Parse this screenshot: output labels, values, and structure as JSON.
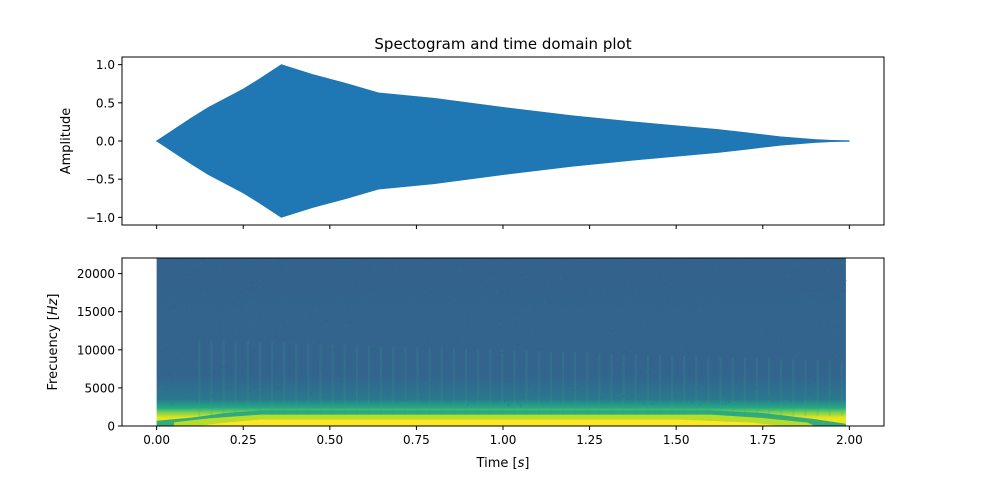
{
  "chart_data": [
    {
      "type": "area",
      "title": "Spectogram and time domain plot",
      "xlabel": "",
      "ylabel": "Amplitude",
      "xlim": [
        -0.1,
        2.1
      ],
      "ylim": [
        -1.1,
        1.1
      ],
      "xticks": [
        0.0,
        0.25,
        0.5,
        0.75,
        1.0,
        1.25,
        1.5,
        1.75,
        2.0
      ],
      "xticks_labels_visible": false,
      "yticks": [
        -1.0,
        -0.5,
        0.0,
        0.5,
        1.0
      ],
      "ytick_labels": [
        "−1.0",
        "−0.5",
        "0.0",
        "0.5",
        "1.0"
      ],
      "color": "#1f77b4",
      "grid": false,
      "series": [
        {
          "x": [
            0.0,
            0.05,
            0.1,
            0.15,
            0.2,
            0.25,
            0.3,
            0.36,
            0.45,
            0.55,
            0.64,
            0.8,
            1.0,
            1.2,
            1.4,
            1.62,
            1.7,
            1.8,
            1.9,
            1.95,
            2.0
          ],
          "upper": [
            0.0,
            0.15,
            0.3,
            0.44,
            0.56,
            0.68,
            0.82,
            1.0,
            0.87,
            0.75,
            0.63,
            0.56,
            0.44,
            0.33,
            0.24,
            0.15,
            0.11,
            0.055,
            0.02,
            0.008,
            0.0
          ],
          "lower": [
            0.0,
            -0.15,
            -0.3,
            -0.44,
            -0.56,
            -0.68,
            -0.82,
            -1.0,
            -0.87,
            -0.75,
            -0.63,
            -0.56,
            -0.44,
            -0.33,
            -0.24,
            -0.15,
            -0.11,
            -0.055,
            -0.02,
            -0.008,
            0.0
          ]
        }
      ]
    },
    {
      "type": "heatmap",
      "title": "",
      "xlabel": "Time [$s$]",
      "ylabel": "Frecuency [$Hz$]",
      "xlabel_parts": [
        "Time [",
        "s",
        "]"
      ],
      "ylabel_parts": [
        "Frecuency [",
        "Hz",
        "]"
      ],
      "xlim": [
        -0.1,
        2.1
      ],
      "ylim": [
        0,
        22050
      ],
      "xticks": [
        0.0,
        0.25,
        0.5,
        0.75,
        1.0,
        1.25,
        1.5,
        1.75,
        2.0
      ],
      "xtick_labels": [
        "0.00",
        "0.25",
        "0.50",
        "0.75",
        "1.00",
        "1.25",
        "1.50",
        "1.75",
        "2.00"
      ],
      "yticks": [
        0,
        5000,
        10000,
        15000,
        20000
      ],
      "ytick_labels": [
        "0",
        "5000",
        "10000",
        "15000",
        "20000"
      ],
      "data_extent": {
        "t": [
          0.0,
          1.99
        ],
        "f": [
          0,
          22050
        ]
      },
      "colormap": "viridis",
      "colors": {
        "background": "#33638d",
        "mid": "#2a788e",
        "band": "#bddf26",
        "peak": "#fde725"
      },
      "energy_band_hz": [
        0,
        2000
      ]
    }
  ]
}
